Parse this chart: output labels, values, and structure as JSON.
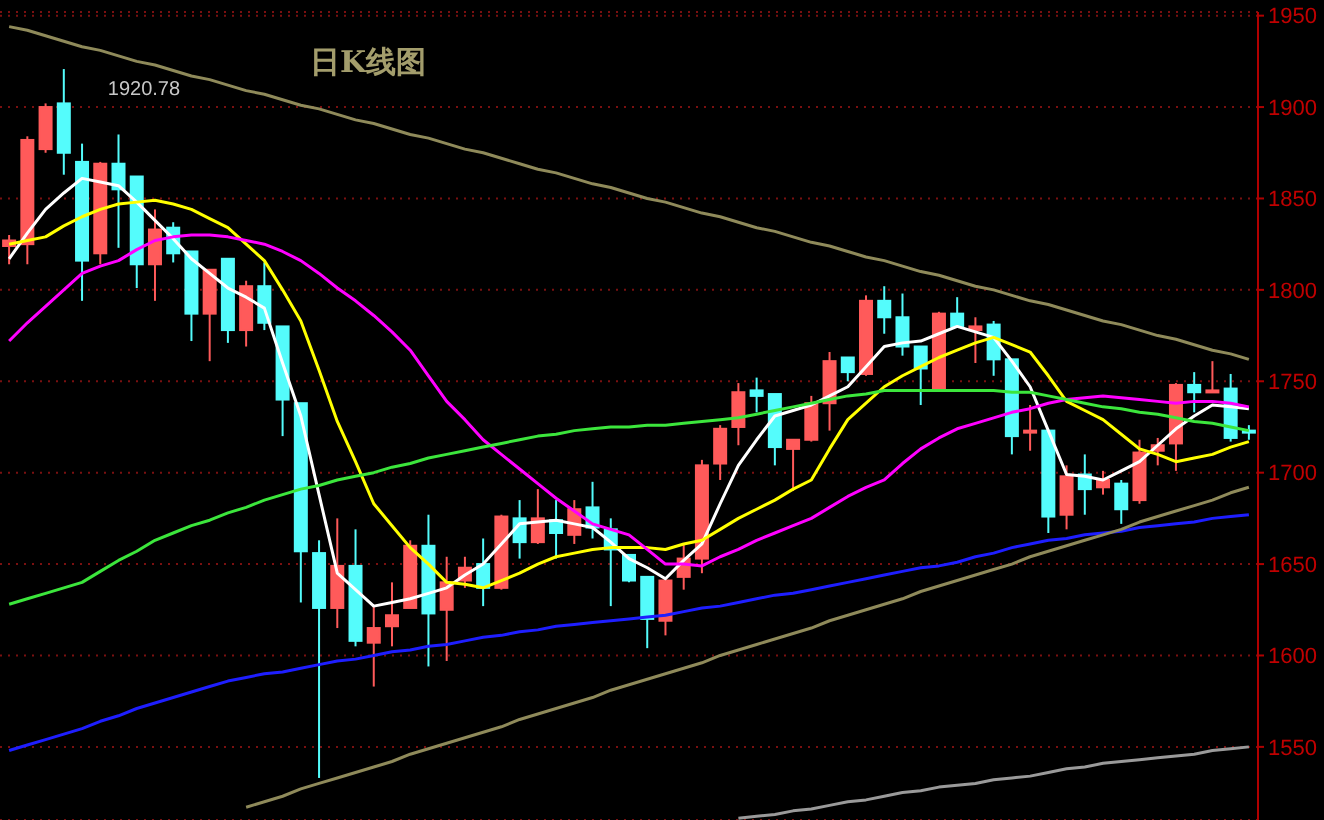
{
  "chart_data": {
    "type": "candlestick",
    "title": "日K线图",
    "categories": [
      null,
      null,
      null,
      null,
      null,
      null,
      null,
      null,
      null,
      null,
      null,
      null,
      null,
      null,
      null,
      null,
      null,
      null,
      null,
      null,
      null,
      null,
      null,
      null,
      null,
      null,
      null,
      null,
      null,
      null,
      null,
      null,
      null,
      null,
      null,
      null,
      null,
      null,
      null,
      null,
      null,
      null,
      null,
      null,
      null,
      null,
      null,
      null,
      null,
      null,
      null,
      null,
      null,
      null,
      null,
      null,
      null,
      null,
      null,
      null,
      null,
      null,
      null,
      null,
      null,
      null,
      null,
      null,
      null
    ],
    "ohlc": [
      [
        1824,
        1830,
        1814,
        1827
      ],
      [
        1825,
        1884,
        1814,
        1882
      ],
      [
        1877,
        1902,
        1875,
        1900
      ],
      [
        1902,
        1920.78,
        1863,
        1875
      ],
      [
        1870,
        1880,
        1794,
        1816
      ],
      [
        1820,
        1870,
        1814,
        1869
      ],
      [
        1869,
        1885,
        1823,
        1855
      ],
      [
        1862,
        1862,
        1801,
        1814
      ],
      [
        1814,
        1844,
        1794,
        1833
      ],
      [
        1834,
        1837,
        1815,
        1820
      ],
      [
        1821,
        1821,
        1772,
        1787
      ],
      [
        1787,
        1811,
        1761,
        1811
      ],
      [
        1817,
        1817,
        1771,
        1778
      ],
      [
        1778,
        1805,
        1769,
        1802
      ],
      [
        1802,
        1815,
        1778,
        1782
      ],
      [
        1780,
        1780,
        1720,
        1740
      ],
      [
        1738,
        1738,
        1629,
        1657
      ],
      [
        1656,
        1663,
        1533,
        1626
      ],
      [
        1626,
        1675,
        1615,
        1649
      ],
      [
        1649,
        1669,
        1605,
        1608
      ],
      [
        1607,
        1627,
        1583,
        1615
      ],
      [
        1616,
        1640,
        1605,
        1622
      ],
      [
        1626,
        1663,
        1626,
        1660
      ],
      [
        1660,
        1677,
        1594,
        1623
      ],
      [
        1625,
        1654,
        1597,
        1640
      ],
      [
        1641,
        1654,
        1637,
        1648
      ],
      [
        1650,
        1664,
        1627,
        1637
      ],
      [
        1637,
        1677,
        1636,
        1676
      ],
      [
        1675,
        1685,
        1653,
        1662
      ],
      [
        1662,
        1691,
        1661,
        1675
      ],
      [
        1674,
        1685,
        1653,
        1667
      ],
      [
        1666,
        1685,
        1661,
        1680
      ],
      [
        1681,
        1695,
        1664,
        1670
      ],
      [
        1669,
        1675,
        1627,
        1658
      ],
      [
        1655,
        1655,
        1640,
        1641
      ],
      [
        1643,
        1643,
        1604,
        1620
      ],
      [
        1619,
        1641,
        1611,
        1641
      ],
      [
        1643,
        1661,
        1636,
        1653
      ],
      [
        1653,
        1707,
        1645,
        1704
      ],
      [
        1705,
        1726,
        1696,
        1724
      ],
      [
        1725,
        1749,
        1715,
        1744
      ],
      [
        1745,
        1752,
        1733,
        1742
      ],
      [
        1743,
        1743,
        1704,
        1714
      ],
      [
        1713,
        1718,
        1690,
        1718
      ],
      [
        1718,
        1742,
        1717,
        1738
      ],
      [
        1738,
        1766,
        1723,
        1761
      ],
      [
        1763,
        1763,
        1750,
        1755
      ],
      [
        1754,
        1797,
        1753,
        1794
      ],
      [
        1794,
        1802,
        1776,
        1785
      ],
      [
        1785,
        1798,
        1764,
        1769
      ],
      [
        1769,
        1769,
        1737,
        1757
      ],
      [
        1745,
        1788,
        1745,
        1787
      ],
      [
        1787,
        1796,
        1780,
        1780
      ],
      [
        1778,
        1785,
        1760,
        1780
      ],
      [
        1781,
        1783,
        1753,
        1762
      ],
      [
        1762,
        1762,
        1710,
        1720
      ],
      [
        1722,
        1737,
        1712,
        1723
      ],
      [
        1723,
        1723,
        1667,
        1676
      ],
      [
        1677,
        1704,
        1669,
        1698
      ],
      [
        1699,
        1710,
        1677,
        1691
      ],
      [
        1692,
        1701,
        1688,
        1696
      ],
      [
        1694,
        1696,
        1672,
        1680
      ],
      [
        1685,
        1718,
        1683,
        1711
      ],
      [
        1712,
        1719,
        1704,
        1715
      ],
      [
        1716,
        1749,
        1701,
        1748
      ],
      [
        1748,
        1755,
        1733,
        1744
      ],
      [
        1744,
        1761,
        1744,
        1745
      ],
      [
        1746,
        1754,
        1717,
        1719
      ],
      [
        1723,
        1726,
        1718,
        1722
      ]
    ],
    "colors": [
      "#ff5a5a",
      "#ff5a5a",
      "#ff5a5a",
      "#54fcfc",
      "#54fcfc",
      "#ff5a5a",
      "#54fcfc",
      "#54fcfc",
      "#ff5a5a",
      "#54fcfc",
      "#54fcfc",
      "#ff5a5a",
      "#54fcfc",
      "#ff5a5a",
      "#54fcfc",
      "#54fcfc",
      "#54fcfc",
      "#54fcfc",
      "#ff5a5a",
      "#54fcfc",
      "#ff5a5a",
      "#ff5a5a",
      "#ff5a5a",
      "#54fcfc",
      "#ff5a5a",
      "#ff5a5a",
      "#54fcfc",
      "#ff5a5a",
      "#54fcfc",
      "#ff5a5a",
      "#54fcfc",
      "#ff5a5a",
      "#54fcfc",
      "#54fcfc",
      "#54fcfc",
      "#54fcfc",
      "#ff5a5a",
      "#ff5a5a",
      "#ff5a5a",
      "#ff5a5a",
      "#ff5a5a",
      "#54fcfc",
      "#54fcfc",
      "#ff5a5a",
      "#ff5a5a",
      "#ff5a5a",
      "#54fcfc",
      "#ff5a5a",
      "#54fcfc",
      "#54fcfc",
      "#54fcfc",
      "#ff5a5a",
      "#54fcfc",
      "#ff5a5a",
      "#54fcfc",
      "#54fcfc",
      "#ff5a5a",
      "#54fcfc",
      "#ff5a5a",
      "#54fcfc",
      "#ff5a5a",
      "#54fcfc",
      "#ff5a5a",
      "#ff5a5a",
      "#ff5a5a",
      "#54fcfc",
      "#ff5a5a",
      "#54fcfc",
      "#54fcfc"
    ],
    "series": [
      {
        "type": "line",
        "color": "#ffffff",
        "values": [
          1817,
          1831,
          1844,
          1853,
          1861,
          1859,
          1857,
          1848,
          1838,
          1828,
          1817,
          1809,
          1801,
          1796,
          1790,
          1760,
          1731,
          1688,
          1645,
          1636,
          1627,
          1629,
          1631,
          1634,
          1637,
          1644,
          1650,
          1661,
          1672,
          1673,
          1674,
          1672,
          1670,
          1662,
          1653,
          1648,
          1642,
          1652,
          1661,
          1683,
          1704,
          1718,
          1731,
          1734,
          1737,
          1742,
          1747,
          1758,
          1769,
          1771,
          1772,
          1776,
          1780,
          1777,
          1774,
          1761,
          1747,
          1723,
          1699,
          1698,
          1696,
          1701,
          1706,
          1715,
          1724,
          1731,
          1737,
          1736,
          1735
        ]
      },
      {
        "type": "line",
        "color": "#ffff00",
        "values": [
          1825,
          1827,
          1829,
          1835,
          1840,
          1844,
          1847,
          1848,
          1849,
          1847,
          1844,
          1839,
          1834,
          1825,
          1816,
          1800,
          1783,
          1756,
          1728,
          1706,
          1683,
          1671,
          1659,
          1650,
          1640,
          1639,
          1637,
          1641,
          1645,
          1650,
          1654,
          1656,
          1658,
          1659,
          1659,
          1659,
          1658,
          1661,
          1663,
          1669,
          1675,
          1680,
          1685,
          1691,
          1696,
          1713,
          1729,
          1738,
          1747,
          1753,
          1758,
          1763,
          1767,
          1771,
          1774,
          1770,
          1766,
          1753,
          1739,
          1734,
          1729,
          1721,
          1713,
          1710,
          1706,
          1708,
          1710,
          1714,
          1717
        ]
      },
      {
        "type": "line",
        "color": "#ff00ff",
        "values": [
          1772,
          1782,
          1791,
          1800,
          1809,
          1813,
          1816,
          1822,
          1827,
          1829,
          1830,
          1830,
          1829,
          1827,
          1825,
          1821,
          1816,
          1809,
          1801,
          1794,
          1786,
          1777,
          1767,
          1753,
          1739,
          1729,
          1718,
          1710,
          1702,
          1694,
          1686,
          1679,
          1672,
          1669,
          1666,
          1658,
          1650,
          1650,
          1649,
          1654,
          1658,
          1663,
          1667,
          1671,
          1675,
          1681,
          1687,
          1692,
          1696,
          1705,
          1713,
          1719,
          1724,
          1727,
          1730,
          1733,
          1735,
          1738,
          1740,
          1741,
          1742,
          1741,
          1740,
          1739,
          1738,
          1739,
          1739,
          1738,
          1736
        ]
      },
      {
        "type": "line",
        "color": "#3ce63c",
        "values": [
          1628,
          1631,
          1634,
          1637,
          1640,
          1646,
          1652,
          1657,
          1663,
          1667,
          1671,
          1674,
          1678,
          1681,
          1685,
          1688,
          1691,
          1693,
          1696,
          1698,
          1700,
          1703,
          1705,
          1708,
          1710,
          1712,
          1714,
          1716,
          1718,
          1720,
          1721,
          1723,
          1724,
          1725,
          1725,
          1726,
          1726,
          1727,
          1728,
          1729,
          1730,
          1732,
          1734,
          1736,
          1738,
          1740,
          1742,
          1743,
          1745,
          1745,
          1745,
          1745,
          1745,
          1745,
          1745,
          1744,
          1744,
          1742,
          1740,
          1738,
          1736,
          1735,
          1733,
          1732,
          1730,
          1728,
          1727,
          1725,
          1723
        ]
      },
      {
        "type": "line",
        "color": "#1e1eff",
        "values": [
          1548,
          1551,
          1554,
          1557,
          1560,
          1564,
          1567,
          1571,
          1574,
          1577,
          1580,
          1583,
          1586,
          1588,
          1590,
          1591,
          1593,
          1595,
          1597,
          1598,
          1600,
          1602,
          1603,
          1605,
          1606,
          1608,
          1610,
          1611,
          1613,
          1614,
          1616,
          1617,
          1618,
          1619,
          1620,
          1621,
          1622,
          1624,
          1626,
          1627,
          1629,
          1631,
          1633,
          1634,
          1636,
          1638,
          1640,
          1642,
          1644,
          1646,
          1648,
          1649,
          1651,
          1654,
          1656,
          1659,
          1661,
          1663,
          1664,
          1666,
          1667,
          1668,
          1670,
          1671,
          1672,
          1673,
          1675,
          1676,
          1677
        ]
      },
      {
        "type": "line",
        "color": "#9a9a9a",
        "values": [
          null,
          null,
          null,
          null,
          null,
          null,
          null,
          null,
          null,
          null,
          null,
          null,
          null,
          null,
          null,
          null,
          null,
          null,
          null,
          null,
          null,
          null,
          null,
          null,
          null,
          null,
          null,
          null,
          null,
          null,
          null,
          null,
          null,
          null,
          null,
          null,
          null,
          null,
          null,
          null,
          1511,
          1512,
          1513,
          1515,
          1516,
          1518,
          1520,
          1521,
          1523,
          1525,
          1526,
          1528,
          1529,
          1530,
          1532,
          1533,
          1534,
          1536,
          1538,
          1539,
          1541,
          1542,
          1543,
          1544,
          1545,
          1546,
          1548,
          1549,
          1550
        ]
      },
      {
        "type": "line",
        "color": "#8f8a5a",
        "values": [
          1944,
          1942,
          1939,
          1936,
          1933,
          1931,
          1928,
          1925,
          1923,
          1920,
          1917,
          1915,
          1912,
          1909,
          1907,
          1904,
          1901,
          1899,
          1896,
          1893,
          1891,
          1888,
          1885,
          1883,
          1880,
          1877,
          1875,
          1872,
          1869,
          1866,
          1864,
          1861,
          1858,
          1856,
          1853,
          1850,
          1848,
          1845,
          1842,
          1840,
          1837,
          1834,
          1832,
          1829,
          1826,
          1824,
          1821,
          1818,
          1816,
          1813,
          1810,
          1808,
          1805,
          1802,
          1800,
          1797,
          1794,
          1792,
          1789,
          1786,
          1783,
          1781,
          1778,
          1775,
          1773,
          1770,
          1767,
          1765,
          1762
        ]
      },
      {
        "type": "line",
        "color": "#8f8a5a",
        "values": [
          null,
          null,
          null,
          null,
          null,
          null,
          null,
          null,
          null,
          null,
          null,
          null,
          null,
          1517,
          1520,
          1523,
          1527,
          1530,
          1533,
          1536,
          1539,
          1542,
          1546,
          1549,
          1552,
          1555,
          1558,
          1561,
          1565,
          1568,
          1571,
          1574,
          1577,
          1581,
          1584,
          1587,
          1590,
          1593,
          1596,
          1600,
          1603,
          1606,
          1609,
          1612,
          1615,
          1619,
          1622,
          1625,
          1628,
          1631,
          1635,
          1638,
          1641,
          1644,
          1647,
          1650,
          1654,
          1657,
          1660,
          1663,
          1666,
          1669,
          1673,
          1676,
          1679,
          1682,
          1685,
          1689,
          1692
        ]
      }
    ],
    "annotations": [
      "1920.78"
    ],
    "ylim": [
      1510,
      1952
    ],
    "yticks": [
      1550,
      1600,
      1650,
      1700,
      1750,
      1800,
      1850,
      1900,
      1950
    ],
    "grid": "y",
    "tick_labels": "y"
  }
}
